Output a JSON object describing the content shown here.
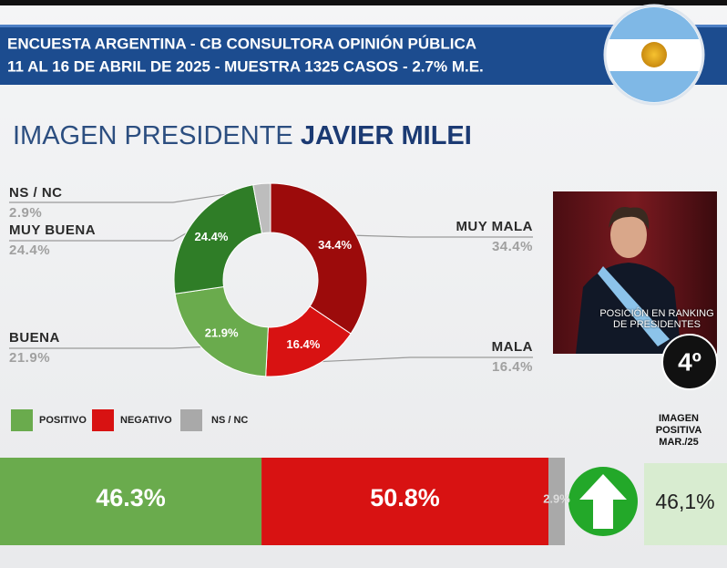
{
  "header": {
    "line1": "ENCUESTA ARGENTINA - CB CONSULTORA OPINIÓN PÚBLICA",
    "line2": "11 AL 16 DE ABRIL  DE 2025 - MUESTRA 1325 CASOS - 2.7% M.E."
  },
  "title": "IMAGEN PRESIDENTE",
  "title_name": "JAVIER MILEI",
  "photo": {
    "caption": "POSICIÓN EN RANKING DE PRESIDENTES",
    "rank": "4º"
  },
  "comparison": {
    "label": "IMAGEN POSITIVA MAR./25",
    "value": "46,1%"
  },
  "chart_data": [
    {
      "type": "pie",
      "donut": true,
      "categories": [
        "MUY MALA",
        "MALA",
        "BUENA",
        "MUY BUENA",
        "NS / NC"
      ],
      "values": [
        34.4,
        16.4,
        21.9,
        24.4,
        2.9
      ],
      "value_labels": [
        "34.4%",
        "16.4%",
        "21.9%",
        "24.4%",
        "2.9%"
      ],
      "colors": [
        "#9c0b0b",
        "#d81212",
        "#6aab4d",
        "#2f7d27",
        "#bdbdbd"
      ]
    },
    {
      "type": "stacked_bar",
      "orientation": "horizontal",
      "xlim": [
        0,
        100
      ],
      "series": [
        {
          "name": "POSITIVO",
          "color": "#6aab4d",
          "values": [
            46.3
          ],
          "value_labels": [
            "46.3%"
          ]
        },
        {
          "name": "NEGATIVO",
          "color": "#d81212",
          "values": [
            50.8
          ],
          "value_labels": [
            "50.8%"
          ]
        },
        {
          "name": "NS / NC",
          "color": "#a9a9a9",
          "values": [
            2.9
          ],
          "value_labels": [
            "2.9%"
          ]
        }
      ]
    }
  ]
}
